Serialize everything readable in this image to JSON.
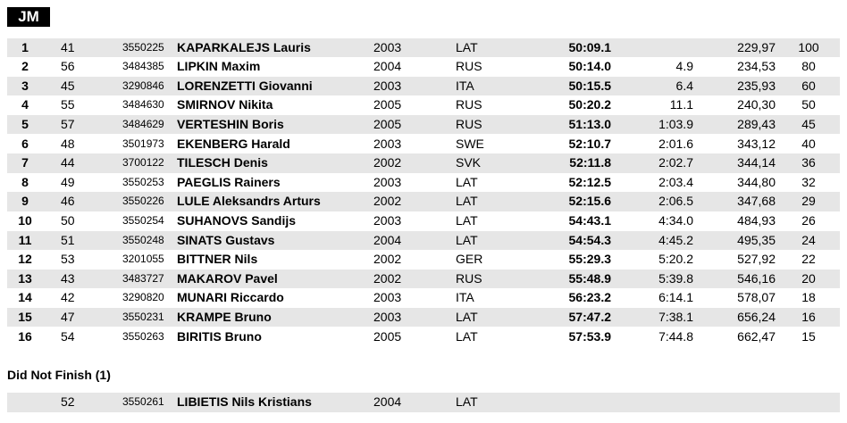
{
  "header": {
    "title": "JM"
  },
  "table": {
    "rows": [
      {
        "rank": "1",
        "bib": "41",
        "code": "3550225",
        "name": "KAPARKALEJS Lauris",
        "year": "2003",
        "nation": "LAT",
        "time": "50:09.1",
        "points": "229,97",
        "cup": "100"
      },
      {
        "rank": "2",
        "bib": "56",
        "code": "3484385",
        "name": "LIPKIN Maxim",
        "year": "2004",
        "nation": "RUS",
        "time": "50:14.0",
        "diff": "4.9",
        "points": "234,53",
        "cup": "80"
      },
      {
        "rank": "3",
        "bib": "45",
        "code": "3290846",
        "name": "LORENZETTI Giovanni",
        "year": "2003",
        "nation": "ITA",
        "time": "50:15.5",
        "diff": "6.4",
        "points": "235,93",
        "cup": "60"
      },
      {
        "rank": "4",
        "bib": "55",
        "code": "3484630",
        "name": "SMIRNOV Nikita",
        "year": "2005",
        "nation": "RUS",
        "time": "50:20.2",
        "diff": "11.1",
        "points": "240,30",
        "cup": "50"
      },
      {
        "rank": "5",
        "bib": "57",
        "code": "3484629",
        "name": "VERTESHIN Boris",
        "year": "2005",
        "nation": "RUS",
        "time": "51:13.0",
        "diff": "1:03.9",
        "points": "289,43",
        "cup": "45"
      },
      {
        "rank": "6",
        "bib": "48",
        "code": "3501973",
        "name": "EKENBERG Harald",
        "year": "2003",
        "nation": "SWE",
        "time": "52:10.7",
        "diff": "2:01.6",
        "points": "343,12",
        "cup": "40"
      },
      {
        "rank": "7",
        "bib": "44",
        "code": "3700122",
        "name": "TILESCH Denis",
        "year": "2002",
        "nation": "SVK",
        "time": "52:11.8",
        "diff": "2:02.7",
        "points": "344,14",
        "cup": "36"
      },
      {
        "rank": "8",
        "bib": "49",
        "code": "3550253",
        "name": "PAEGLIS Rainers",
        "year": "2003",
        "nation": "LAT",
        "time": "52:12.5",
        "diff": "2:03.4",
        "points": "344,80",
        "cup": "32"
      },
      {
        "rank": "9",
        "bib": "46",
        "code": "3550226",
        "name": "LULE Aleksandrs Arturs",
        "year": "2002",
        "nation": "LAT",
        "time": "52:15.6",
        "diff": "2:06.5",
        "points": "347,68",
        "cup": "29"
      },
      {
        "rank": "10",
        "bib": "50",
        "code": "3550254",
        "name": "SUHANOVS Sandijs",
        "year": "2003",
        "nation": "LAT",
        "time": "54:43.1",
        "diff": "4:34.0",
        "points": "484,93",
        "cup": "26"
      },
      {
        "rank": "11",
        "bib": "51",
        "code": "3550248",
        "name": "SINATS Gustavs",
        "year": "2004",
        "nation": "LAT",
        "time": "54:54.3",
        "diff": "4:45.2",
        "points": "495,35",
        "cup": "24"
      },
      {
        "rank": "12",
        "bib": "53",
        "code": "3201055",
        "name": "BITTNER Nils",
        "year": "2002",
        "nation": "GER",
        "time": "55:29.3",
        "diff": "5:20.2",
        "points": "527,92",
        "cup": "22"
      },
      {
        "rank": "13",
        "bib": "43",
        "code": "3483727",
        "name": "MAKAROV Pavel",
        "year": "2002",
        "nation": "RUS",
        "time": "55:48.9",
        "diff": "5:39.8",
        "points": "546,16",
        "cup": "20"
      },
      {
        "rank": "14",
        "bib": "42",
        "code": "3290820",
        "name": "MUNARI Riccardo",
        "year": "2003",
        "nation": "ITA",
        "time": "56:23.2",
        "diff": "6:14.1",
        "points": "578,07",
        "cup": "18"
      },
      {
        "rank": "15",
        "bib": "47",
        "code": "3550231",
        "name": "KRAMPE Bruno",
        "year": "2003",
        "nation": "LAT",
        "time": "57:47.2",
        "diff": "7:38.1",
        "points": "656,24",
        "cup": "16"
      },
      {
        "rank": "16",
        "bib": "54",
        "code": "3550263",
        "name": "BIRITIS Bruno",
        "year": "2005",
        "nation": "LAT",
        "time": "57:53.9",
        "diff": "7:44.8",
        "points": "662,47",
        "cup": "15"
      }
    ]
  },
  "dnf": {
    "title": "Did Not Finish (1)",
    "rows": [
      {
        "bib": "52",
        "code": "3550261",
        "name": "LIBIETIS Nils Kristians",
        "year": "2004",
        "nation": "LAT"
      }
    ]
  }
}
